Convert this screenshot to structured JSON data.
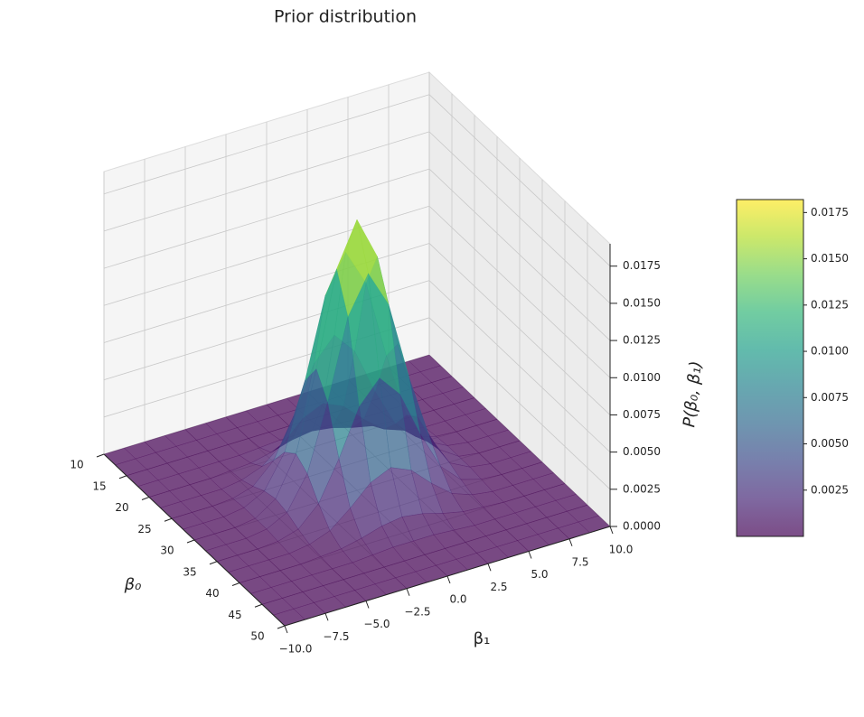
{
  "chart_data": {
    "type": "surface3d",
    "title": "Prior distribution",
    "xlabel": "β₀",
    "ylabel": "β₁",
    "zlabel": "P(β₀, β₁)",
    "colormap": "viridis",
    "alpha": 0.7,
    "xlim": [
      10,
      50
    ],
    "ylim": [
      -10,
      10
    ],
    "zlim": [
      0,
      0.019
    ],
    "xticks": [
      10,
      15,
      20,
      25,
      30,
      35,
      40,
      45,
      50
    ],
    "yticks": [
      {
        "value": -10,
        "label": "−10.0"
      },
      {
        "value": -7.5,
        "label": "−7.5"
      },
      {
        "value": -5,
        "label": "−5.0"
      },
      {
        "value": -2.5,
        "label": "−2.5"
      },
      {
        "value": 0,
        "label": "0.0"
      },
      2.5,
      {
        "value": 5,
        "label": "5.0"
      },
      7.5,
      {
        "value": 10,
        "label": "10.0"
      }
    ],
    "zticks": [
      {
        "value": 0,
        "label": "0.0000"
      },
      0.0025,
      {
        "value": 0.005,
        "label": "0.0050"
      },
      0.0075,
      {
        "value": 0.01,
        "label": "0.0100"
      },
      0.0125,
      {
        "value": 0.015,
        "label": "0.0150"
      },
      0.0175
    ],
    "colorbar_ticks": [
      0.0025,
      {
        "value": 0.005,
        "label": "0.0050"
      },
      0.0075,
      {
        "value": 0.01,
        "label": "0.0100"
      },
      0.0125,
      {
        "value": 0.015,
        "label": "0.0150"
      },
      0.0175
    ],
    "surface": {
      "x": [
        10,
        12.5,
        15,
        17.5,
        20,
        22.5,
        25,
        27.5,
        30,
        32.5,
        35,
        37.5,
        40,
        42.5,
        45,
        47.5,
        50
      ],
      "y": [
        -10,
        -8.75,
        -7.5,
        -6.25,
        -5,
        -3.75,
        -2.5,
        -1.25,
        0,
        1.25,
        2.5,
        3.75,
        5,
        6.25,
        7.5,
        8.75,
        10
      ],
      "z": [
        [
          0,
          0,
          0,
          0,
          0,
          0,
          0,
          0,
          0,
          0,
          0,
          0,
          0,
          0,
          0,
          0,
          0
        ],
        [
          0,
          0,
          0,
          0,
          0,
          0,
          0,
          0,
          0,
          0,
          0,
          0,
          0,
          0,
          0,
          0,
          0
        ],
        [
          0,
          0,
          0,
          0,
          0,
          0,
          0,
          0,
          0,
          0,
          0,
          0,
          0,
          0,
          0,
          0,
          0
        ],
        [
          0,
          0,
          0,
          0,
          0,
          0,
          0.0001,
          0.0002,
          0.0002,
          0.0002,
          0.0001,
          0,
          0,
          0,
          0,
          0,
          0
        ],
        [
          0,
          0,
          0,
          0,
          0.0001,
          0.0002,
          0.0005,
          0.0009,
          0.0011,
          0.0009,
          0.0005,
          0.0002,
          0.0001,
          0,
          0,
          0,
          0
        ],
        [
          0,
          0,
          0,
          0,
          0.0002,
          0.0007,
          0.0018,
          0.0031,
          0.0037,
          0.0031,
          0.0018,
          0.0007,
          0.0002,
          0,
          0,
          0,
          0
        ],
        [
          0,
          0,
          0,
          0.0001,
          0.0005,
          0.0018,
          0.0044,
          0.0075,
          0.009,
          0.0075,
          0.0044,
          0.0018,
          0.0005,
          0.0001,
          0,
          0,
          0
        ],
        [
          0,
          0,
          0,
          0.0002,
          0.0009,
          0.0031,
          0.0075,
          0.0128,
          0.0153,
          0.0128,
          0.0075,
          0.0031,
          0.0009,
          0.0002,
          0,
          0,
          0
        ],
        [
          0,
          0,
          0,
          0.0002,
          0.0011,
          0.0037,
          0.009,
          0.0153,
          0.0182,
          0.0153,
          0.009,
          0.0037,
          0.0011,
          0.0002,
          0,
          0,
          0
        ],
        [
          0,
          0,
          0,
          0.0002,
          0.0009,
          0.0031,
          0.0075,
          0.0128,
          0.0153,
          0.0128,
          0.0075,
          0.0031,
          0.0009,
          0.0002,
          0,
          0,
          0
        ],
        [
          0,
          0,
          0,
          0.0001,
          0.0005,
          0.0018,
          0.0044,
          0.0075,
          0.009,
          0.0075,
          0.0044,
          0.0018,
          0.0005,
          0.0001,
          0,
          0,
          0
        ],
        [
          0,
          0,
          0,
          0,
          0.0002,
          0.0007,
          0.0018,
          0.0031,
          0.0037,
          0.0031,
          0.0018,
          0.0007,
          0.0002,
          0,
          0,
          0,
          0
        ],
        [
          0,
          0,
          0,
          0,
          0.0001,
          0.0002,
          0.0005,
          0.0009,
          0.0011,
          0.0009,
          0.0005,
          0.0002,
          0.0001,
          0,
          0,
          0,
          0
        ],
        [
          0,
          0,
          0,
          0,
          0,
          0,
          0.0001,
          0.0002,
          0.0002,
          0.0002,
          0.0001,
          0,
          0,
          0,
          0,
          0,
          0
        ],
        [
          0,
          0,
          0,
          0,
          0,
          0,
          0,
          0,
          0,
          0,
          0,
          0,
          0,
          0,
          0,
          0,
          0
        ],
        [
          0,
          0,
          0,
          0,
          0,
          0,
          0,
          0,
          0,
          0,
          0,
          0,
          0,
          0,
          0,
          0,
          0
        ],
        [
          0,
          0,
          0,
          0,
          0,
          0,
          0,
          0,
          0,
          0,
          0,
          0,
          0,
          0,
          0,
          0,
          0
        ]
      ]
    }
  }
}
